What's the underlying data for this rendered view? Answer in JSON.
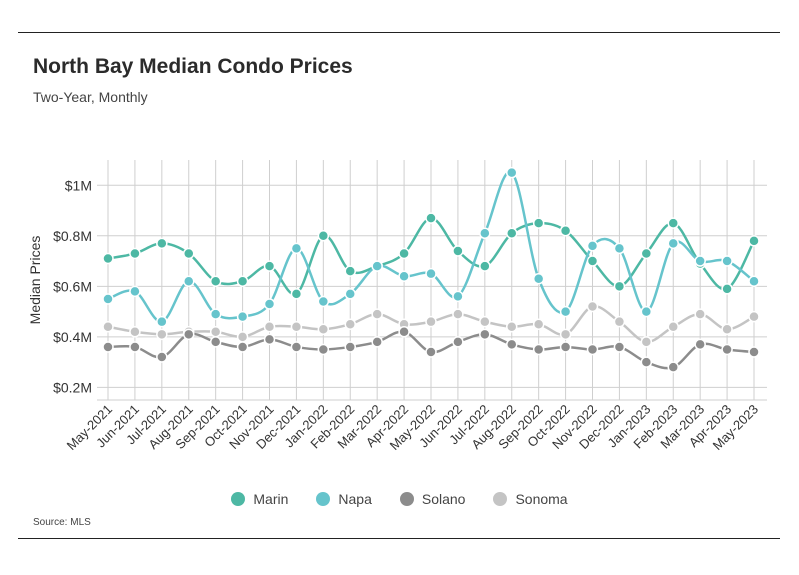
{
  "header": {
    "title": "North Bay Median Condo Prices",
    "subtitle": "Two-Year, Monthly"
  },
  "footer": {
    "source": "Source: MLS"
  },
  "chart_data": {
    "type": "line",
    "title": "North Bay Median Condo Prices",
    "subtitle": "Two-Year, Monthly",
    "ylabel": "Median Prices",
    "xlabel": "",
    "ylim": [
      0.15,
      1.1
    ],
    "yticks": [
      0.2,
      0.4,
      0.6,
      0.8,
      1.0
    ],
    "ytick_labels": [
      "$0.2M",
      "$0.4M",
      "$0.6M",
      "$0.8M",
      "$1M"
    ],
    "grid": true,
    "legend_position": "bottom-center",
    "categories": [
      "May-2021",
      "Jun-2021",
      "Jul-2021",
      "Aug-2021",
      "Sep-2021",
      "Oct-2021",
      "Nov-2021",
      "Dec-2021",
      "Jan-2022",
      "Feb-2022",
      "Mar-2022",
      "Apr-2022",
      "May-2022",
      "Jun-2022",
      "Jul-2022",
      "Aug-2022",
      "Sep-2022",
      "Oct-2022",
      "Nov-2022",
      "Dec-2022",
      "Jan-2023",
      "Feb-2023",
      "Mar-2023",
      "Apr-2023",
      "May-2023"
    ],
    "series": [
      {
        "name": "Marin",
        "color": "#4db8a4",
        "values": [
          0.71,
          0.73,
          0.77,
          0.73,
          0.62,
          0.62,
          0.68,
          0.57,
          0.8,
          0.66,
          0.68,
          0.73,
          0.87,
          0.74,
          0.68,
          0.81,
          0.85,
          0.82,
          0.7,
          0.6,
          0.73,
          0.85,
          0.69,
          0.59,
          0.78
        ]
      },
      {
        "name": "Napa",
        "color": "#66c4cc",
        "values": [
          0.55,
          0.58,
          0.46,
          0.62,
          0.49,
          0.48,
          0.53,
          0.75,
          0.54,
          0.57,
          0.68,
          0.64,
          0.65,
          0.56,
          0.81,
          1.05,
          0.63,
          0.5,
          0.76,
          0.75,
          0.5,
          0.77,
          0.7,
          0.7,
          0.62
        ]
      },
      {
        "name": "Solano",
        "color": "#8c8c8c",
        "values": [
          0.36,
          0.36,
          0.32,
          0.41,
          0.38,
          0.36,
          0.39,
          0.36,
          0.35,
          0.36,
          0.38,
          0.42,
          0.34,
          0.38,
          0.41,
          0.37,
          0.35,
          0.36,
          0.35,
          0.36,
          0.3,
          0.28,
          0.37,
          0.35,
          0.34
        ]
      },
      {
        "name": "Sonoma",
        "color": "#c4c4c4",
        "values": [
          0.44,
          0.42,
          0.41,
          0.42,
          0.42,
          0.4,
          0.44,
          0.44,
          0.43,
          0.45,
          0.49,
          0.45,
          0.46,
          0.49,
          0.46,
          0.44,
          0.45,
          0.41,
          0.52,
          0.46,
          0.38,
          0.44,
          0.49,
          0.43,
          0.48
        ]
      }
    ]
  }
}
